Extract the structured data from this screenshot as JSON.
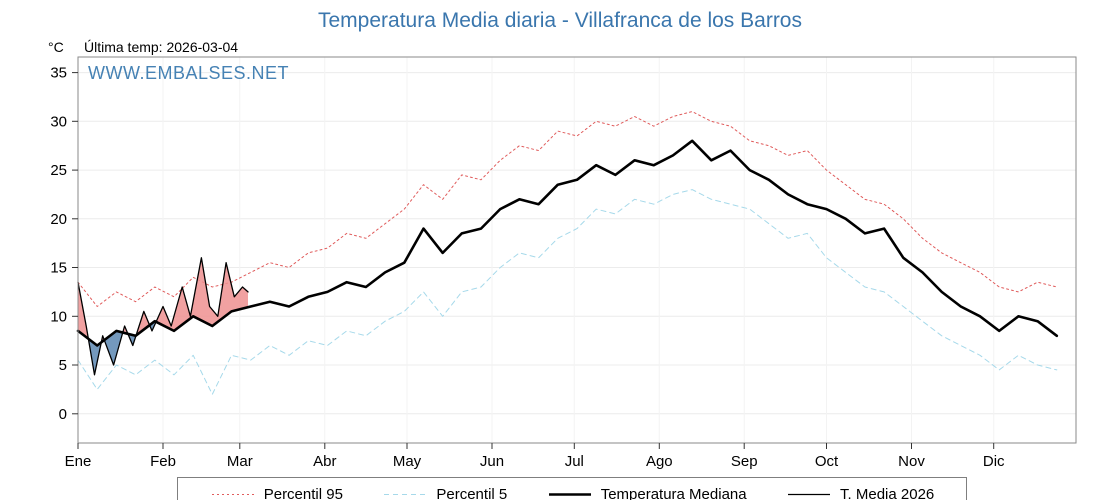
{
  "header": {
    "title": "Temperatura Media diaria - Villafranca de los Barros",
    "unit_label": "°C",
    "last_temp": "Última temp: 2026-03-04",
    "watermark": "WWW.EMBALSES.NET"
  },
  "colors": {
    "title_blue": "#3a76ad",
    "watermark_blue": "#4682b4",
    "grid": "#ececec",
    "axis_border": "#8a8a8a"
  },
  "chart_data": {
    "type": "line",
    "title": "Temperatura Media diaria - Villafranca de los Barros",
    "xlabel": "",
    "ylabel": "°C",
    "ylim": [
      -3,
      36.6
    ],
    "yticks": [
      0,
      5,
      10,
      15,
      20,
      25,
      30,
      35
    ],
    "x_unit": "day_of_year",
    "x_max": 365,
    "grid": true,
    "legend_position": "bottom",
    "month_ticks": [
      {
        "label": "Ene",
        "day": 1
      },
      {
        "label": "Feb",
        "day": 32
      },
      {
        "label": "Mar",
        "day": 60
      },
      {
        "label": "Abr",
        "day": 91
      },
      {
        "label": "May",
        "day": 121
      },
      {
        "label": "Jun",
        "day": 152
      },
      {
        "label": "Jul",
        "day": 182
      },
      {
        "label": "Ago",
        "day": 213
      },
      {
        "label": "Sep",
        "day": 244
      },
      {
        "label": "Oct",
        "day": 274
      },
      {
        "label": "Nov",
        "day": 305
      },
      {
        "label": "Dic",
        "day": 335
      }
    ],
    "x": [
      1,
      8,
      15,
      22,
      29,
      36,
      43,
      50,
      57,
      64,
      71,
      78,
      85,
      92,
      99,
      106,
      113,
      120,
      127,
      134,
      141,
      148,
      155,
      162,
      169,
      176,
      183,
      190,
      197,
      204,
      211,
      218,
      225,
      232,
      239,
      246,
      253,
      260,
      267,
      274,
      281,
      288,
      295,
      302,
      309,
      316,
      323,
      330,
      337,
      344,
      351,
      358
    ],
    "series": [
      {
        "name": "Percentil 95",
        "role": "p95",
        "color": "#e05c5c",
        "width": 1,
        "dash": "2 3",
        "values": [
          13.5,
          11,
          12.5,
          11.5,
          13,
          12,
          14,
          13,
          13.5,
          14.5,
          15.5,
          15,
          16.5,
          17,
          18.5,
          18,
          19.5,
          21,
          23.5,
          22,
          24.5,
          24,
          26,
          27.5,
          27,
          29,
          28.5,
          30,
          29.5,
          30.5,
          29.5,
          30.5,
          31,
          30,
          29.5,
          28,
          27.5,
          26.5,
          27,
          25,
          23.5,
          22,
          21.5,
          20,
          18,
          16.5,
          15.5,
          14.5,
          13,
          12.5,
          13.5,
          13
        ]
      },
      {
        "name": "Percentil 5",
        "role": "p5",
        "color": "#a6d9ea",
        "width": 1,
        "dash": "5 4",
        "values": [
          5.5,
          2.5,
          5,
          4,
          5.5,
          4,
          6,
          2,
          6,
          5.5,
          7,
          6,
          7.5,
          7,
          8.5,
          8,
          9.5,
          10.5,
          12.5,
          10,
          12.5,
          13,
          15,
          16.5,
          16,
          18,
          19,
          21,
          20.5,
          22,
          21.5,
          22.5,
          23,
          22,
          21.5,
          21,
          19.5,
          18,
          18.5,
          16,
          14.5,
          13,
          12.5,
          11,
          9.5,
          8,
          7,
          6,
          4.5,
          6,
          5,
          4.5
        ]
      },
      {
        "name": "Temperatura Mediana",
        "role": "median",
        "color": "#000000",
        "width": 2.6,
        "dash": "",
        "values": [
          8.5,
          7,
          8.5,
          8,
          9.5,
          8.5,
          10,
          9,
          10.5,
          11,
          11.5,
          11,
          12,
          12.5,
          13.5,
          13,
          14.5,
          15.5,
          19,
          16.5,
          18.5,
          19,
          21,
          22,
          21.5,
          23.5,
          24,
          25.5,
          24.5,
          26,
          25.5,
          26.5,
          28,
          26,
          27,
          25,
          24,
          22.5,
          21.5,
          21,
          20,
          18.5,
          19,
          16,
          14.5,
          12.5,
          11,
          10,
          8.5,
          10,
          9.5,
          8
        ]
      },
      {
        "name": "T. Media 2026",
        "role": "current",
        "color": "#000000",
        "width": 1.3,
        "dash": "",
        "x": [
          1,
          4,
          7,
          10,
          14,
          18,
          21,
          25,
          28,
          32,
          35,
          39,
          42,
          46,
          49,
          52,
          55,
          58,
          61,
          63
        ],
        "values": [
          13.5,
          9,
          4,
          8,
          5,
          9,
          7,
          10.5,
          8.5,
          11,
          9,
          13,
          10,
          16,
          11,
          10,
          15.5,
          12,
          13,
          12.5
        ],
        "fills": {
          "above": "#ef9191",
          "below": "#5c87b2"
        }
      }
    ]
  },
  "legend": {
    "items": [
      {
        "label": "Percentil 95"
      },
      {
        "label": "Percentil 5"
      },
      {
        "label": "Temperatura Mediana"
      },
      {
        "label": "T. Media 2026"
      }
    ]
  }
}
